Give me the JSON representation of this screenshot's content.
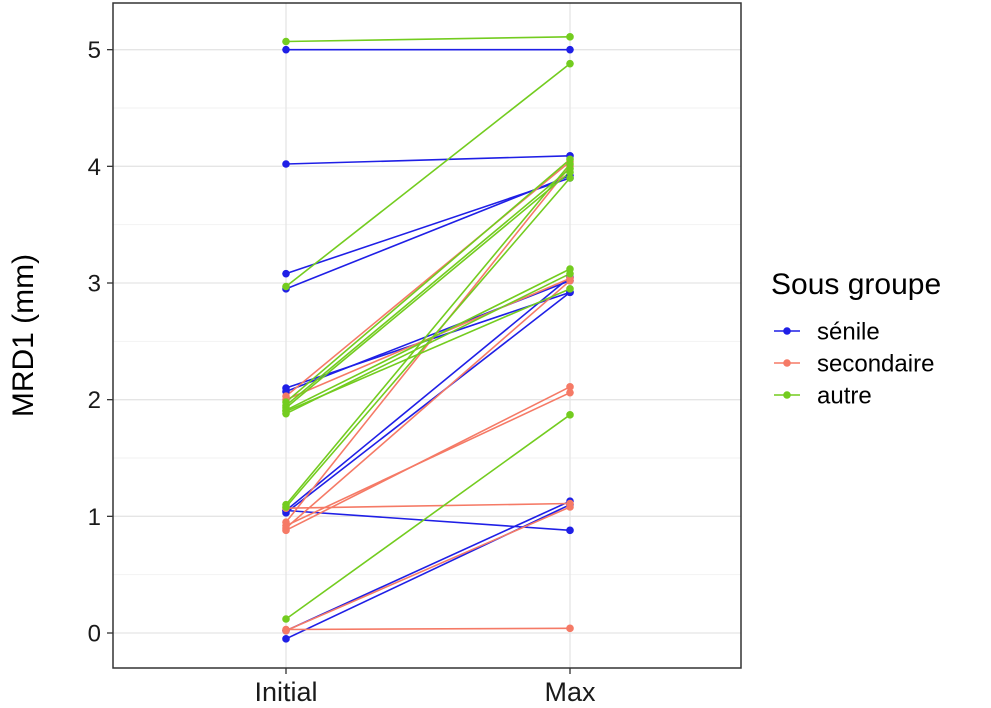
{
  "chart_data": {
    "type": "line",
    "title": "",
    "xlabel": "",
    "ylabel": "MRD1 (mm)",
    "categories": [
      "Initial",
      "Max"
    ],
    "ylim": [
      -0.3,
      5.4
    ],
    "yticks": [
      0,
      1,
      2,
      3,
      4,
      5
    ],
    "grid": true,
    "legend": {
      "title": "Sous groupe",
      "position": "right",
      "items": [
        {
          "name": "sénile",
          "color": "#1f1fe6"
        },
        {
          "name": "secondaire",
          "color": "#f57a66"
        },
        {
          "name": "autre",
          "color": "#73cc1f"
        }
      ]
    },
    "series": [
      {
        "name": "sénile",
        "color": "#1f1fe6",
        "pairs": [
          [
            4.02,
            4.09
          ],
          [
            3.08,
            3.9
          ],
          [
            2.95,
            3.92
          ],
          [
            2.1,
            2.92
          ],
          [
            2.07,
            3.02
          ],
          [
            1.05,
            3.05
          ],
          [
            1.03,
            2.92
          ],
          [
            1.05,
            0.88
          ],
          [
            0.02,
            1.13
          ],
          [
            -0.05,
            1.1
          ],
          [
            5.0,
            5.0
          ]
        ]
      },
      {
        "name": "secondaire",
        "color": "#f57a66",
        "pairs": [
          [
            2.03,
            4.04
          ],
          [
            2.0,
            3.04
          ],
          [
            0.95,
            4.0
          ],
          [
            0.9,
            3.02
          ],
          [
            0.88,
            2.11
          ],
          [
            0.92,
            2.06
          ],
          [
            1.07,
            1.11
          ],
          [
            0.03,
            0.04
          ],
          [
            0.02,
            1.08
          ]
        ]
      },
      {
        "name": "autre",
        "color": "#73cc1f",
        "pairs": [
          [
            5.07,
            5.11
          ],
          [
            2.97,
            4.88
          ],
          [
            1.98,
            4.06
          ],
          [
            1.95,
            3.98
          ],
          [
            1.93,
            3.95
          ],
          [
            1.91,
            3.12
          ],
          [
            1.9,
            2.95
          ],
          [
            1.88,
            3.08
          ],
          [
            1.1,
            4.02
          ],
          [
            1.08,
            3.9
          ],
          [
            0.12,
            1.87
          ]
        ]
      }
    ]
  }
}
